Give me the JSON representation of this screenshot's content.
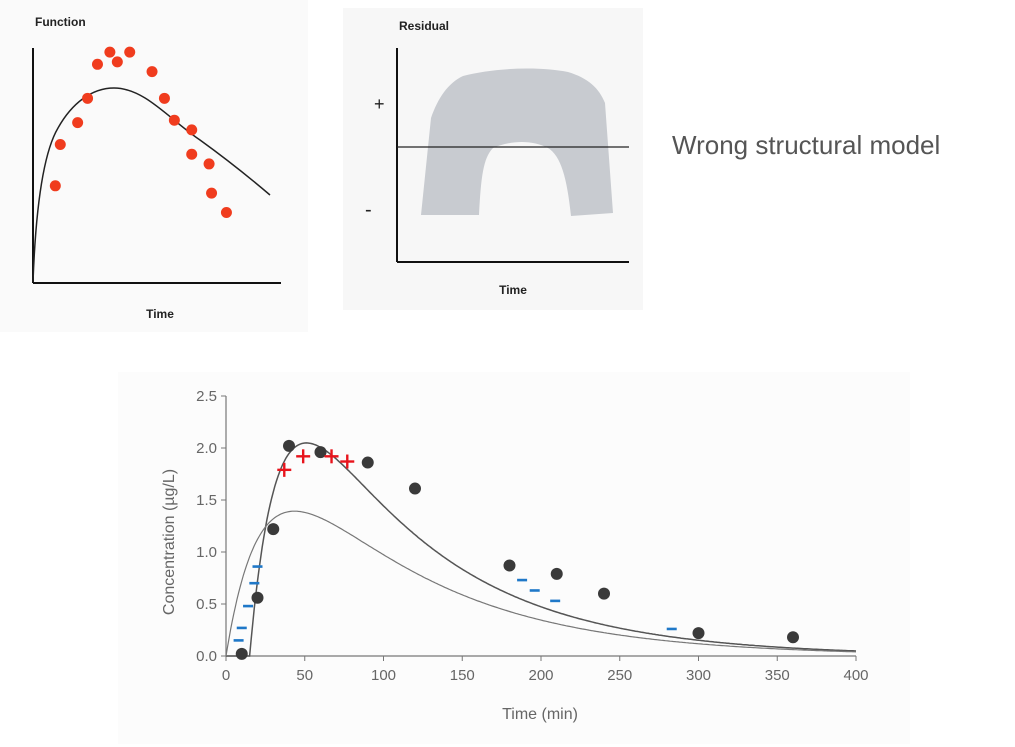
{
  "caption": "Wrong structural model",
  "chart_data": [
    {
      "type": "scatter",
      "title": "Function",
      "xlabel": "Time",
      "ylabel": "",
      "points_color": "#f03c1e",
      "curve_color": "#222222",
      "points": [
        {
          "x": 0.09,
          "y": 0.4
        },
        {
          "x": 0.11,
          "y": 0.57
        },
        {
          "x": 0.18,
          "y": 0.66
        },
        {
          "x": 0.22,
          "y": 0.76
        },
        {
          "x": 0.26,
          "y": 0.9
        },
        {
          "x": 0.31,
          "y": 0.95
        },
        {
          "x": 0.34,
          "y": 0.91
        },
        {
          "x": 0.39,
          "y": 0.95
        },
        {
          "x": 0.48,
          "y": 0.87
        },
        {
          "x": 0.53,
          "y": 0.76
        },
        {
          "x": 0.57,
          "y": 0.67
        },
        {
          "x": 0.64,
          "y": 0.63
        },
        {
          "x": 0.64,
          "y": 0.53
        },
        {
          "x": 0.71,
          "y": 0.49
        },
        {
          "x": 0.72,
          "y": 0.37
        },
        {
          "x": 0.78,
          "y": 0.29
        }
      ]
    },
    {
      "type": "area",
      "title": "Residual",
      "xlabel": "Time",
      "plus_label": "+",
      "minus_label": "-",
      "band_color": "#c8cbd0"
    },
    {
      "type": "scatter",
      "title": "",
      "xlabel": "Time (min)",
      "ylabel": "Concentration (µg/L)",
      "xlim": [
        0,
        400
      ],
      "ylim": [
        0,
        2.5
      ],
      "xticks": [
        "0",
        "50",
        "100",
        "150",
        "200",
        "250",
        "300",
        "350",
        "400"
      ],
      "yticks": [
        "0.0",
        "0.5",
        "1.0",
        "1.5",
        "2.0",
        "2.5"
      ],
      "observations": [
        {
          "x": 10,
          "y": 0.02
        },
        {
          "x": 20,
          "y": 0.56
        },
        {
          "x": 30,
          "y": 1.22
        },
        {
          "x": 40,
          "y": 2.02
        },
        {
          "x": 60,
          "y": 1.96
        },
        {
          "x": 90,
          "y": 1.86
        },
        {
          "x": 120,
          "y": 1.61
        },
        {
          "x": 180,
          "y": 0.87
        },
        {
          "x": 210,
          "y": 0.79
        },
        {
          "x": 240,
          "y": 0.6
        },
        {
          "x": 300,
          "y": 0.22
        },
        {
          "x": 360,
          "y": 0.18
        }
      ],
      "plus_marks": [
        {
          "x": 37,
          "y": 1.79
        },
        {
          "x": 49,
          "y": 1.92
        },
        {
          "x": 67,
          "y": 1.92
        },
        {
          "x": 77,
          "y": 1.87
        }
      ],
      "minus_marks": [
        {
          "x": 8,
          "y": 0.15
        },
        {
          "x": 10,
          "y": 0.27
        },
        {
          "x": 14,
          "y": 0.48
        },
        {
          "x": 18,
          "y": 0.7
        },
        {
          "x": 20,
          "y": 0.86
        },
        {
          "x": 188,
          "y": 0.73
        },
        {
          "x": 196,
          "y": 0.63
        },
        {
          "x": 209,
          "y": 0.53
        },
        {
          "x": 283,
          "y": 0.26
        }
      ],
      "plus_color": "#e8141c",
      "minus_color": "#1f78c8",
      "marker_color": "#3a3a3a"
    }
  ]
}
